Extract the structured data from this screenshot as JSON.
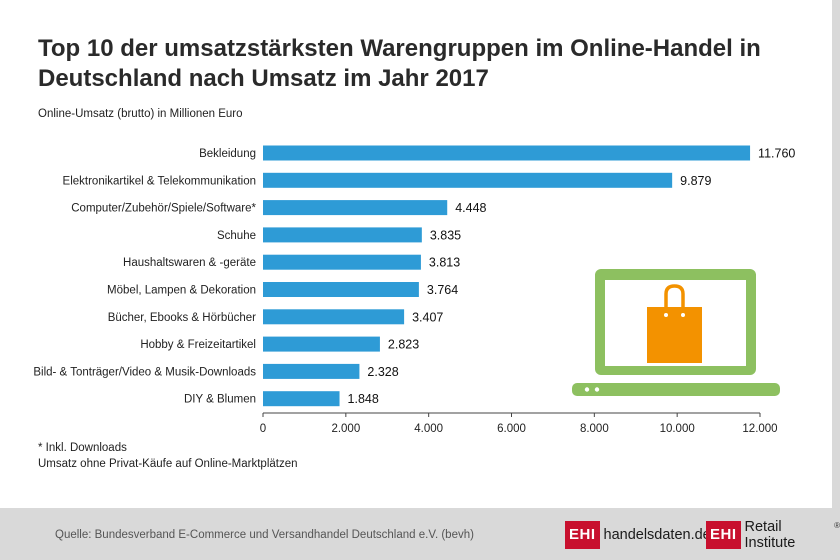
{
  "title": "Top 10 der umsatzstärksten Warengruppen im Online-Handel in Deutschland nach Umsatz im Jahr 2017",
  "unit_label": "Online-Umsatz (brutto) in Millionen Euro",
  "notes": {
    "line1": "*   Inkl. Downloads",
    "line2": "Umsatz ohne Privat-Käufe auf Online-Marktplätzen"
  },
  "source": "Quelle: Bundesverband E-Commerce und Versandhandel Deutschland e.V. (bevh)",
  "logos": {
    "ehi": "EHI",
    "site": "handelsdaten.de",
    "institute": "Retail Institute",
    "reg": "®"
  },
  "colors": {
    "bar": "#2e9bd6",
    "laptop": "#8dc060",
    "bag": "#f39200",
    "brand": "#c8102e"
  },
  "chart_data": {
    "type": "bar",
    "orientation": "horizontal",
    "title": "Top 10 der umsatzstärksten Warengruppen im Online-Handel in Deutschland nach Umsatz im Jahr 2017",
    "xlabel": "Online-Umsatz (brutto) in Millionen Euro",
    "ylabel": "",
    "categories": [
      "Bekleidung",
      "Elektronikartikel & Telekommunikation",
      "Computer/Zubehör/Spiele/Software*",
      "Schuhe",
      "Haushaltswaren & -geräte",
      "Möbel, Lampen & Dekoration",
      "Bücher, Ebooks & Hörbücher",
      "Hobby & Freizeitartikel",
      "Bild- & Tonträger/Video & Musik-Downloads",
      "DIY & Blumen"
    ],
    "values": [
      11760,
      9879,
      4448,
      3835,
      3813,
      3764,
      3407,
      2823,
      2328,
      1848
    ],
    "value_labels": [
      "11.760",
      "9.879",
      "4.448",
      "3.835",
      "3.813",
      "3.764",
      "3.407",
      "2.823",
      "2.328",
      "1.848"
    ],
    "xlim": [
      0,
      12000
    ],
    "ticks": [
      0,
      2000,
      4000,
      6000,
      8000,
      10000,
      12000
    ],
    "tick_labels": [
      "0",
      "2.000",
      "4.000",
      "6.000",
      "8.000",
      "10.000",
      "12.000"
    ],
    "grid": false,
    "legend": "none"
  }
}
